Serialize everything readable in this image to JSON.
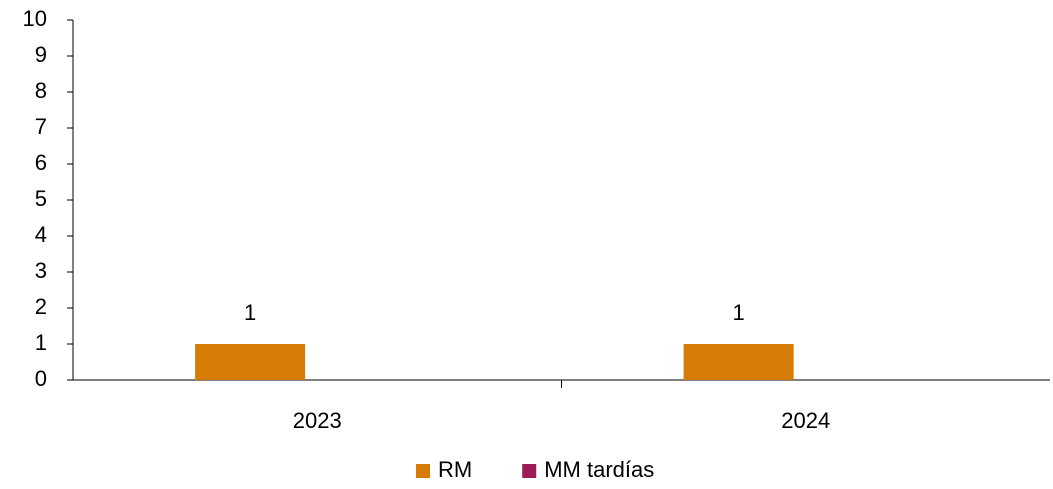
{
  "chart_data": {
    "type": "bar",
    "categories": [
      "2023",
      "2024"
    ],
    "series": [
      {
        "name": "RM",
        "color": "#d67b05",
        "values": [
          1,
          1
        ],
        "data_labels": true
      },
      {
        "name": "MM tardías",
        "color": "#9c1a57",
        "values": [
          0,
          0
        ],
        "data_labels": false
      }
    ],
    "ylim": [
      0,
      10
    ],
    "yticks": [
      0,
      1,
      2,
      3,
      4,
      5,
      6,
      7,
      8,
      9,
      10
    ],
    "grid": false,
    "legend": "bottom"
  }
}
